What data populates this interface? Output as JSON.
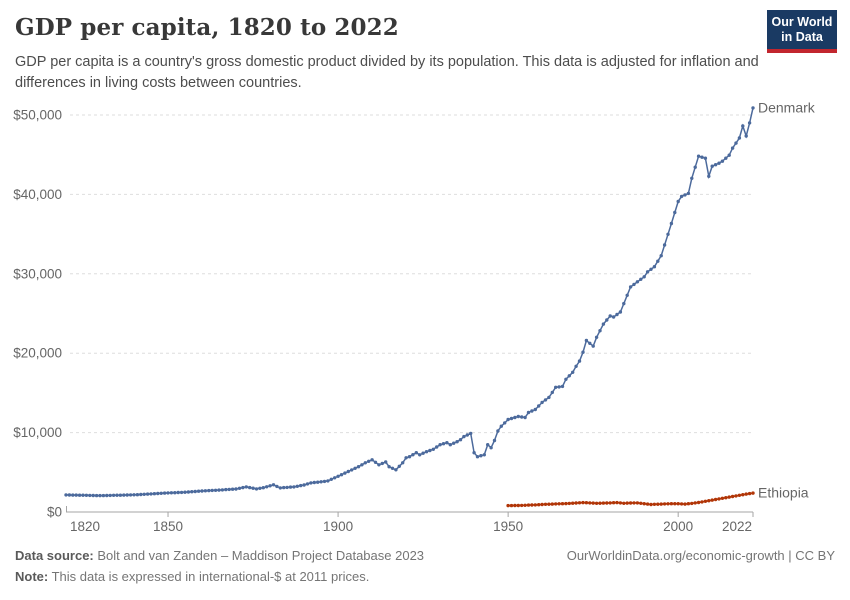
{
  "header": {
    "title": "GDP per capita, 1820 to 2022",
    "subtitle": "GDP per capita is a country's gross domestic product divided by its population. This data is adjusted for inflation and differences in living costs between countries.",
    "logo": {
      "line1": "Our World",
      "line2": "in Data",
      "bg_color": "#1A3A63",
      "stripe_color": "#C2262E"
    }
  },
  "chart_data": {
    "type": "line",
    "title": "GDP per capita, 1820 to 2022",
    "xlabel": "",
    "ylabel": "",
    "x_range": [
      1820,
      2022
    ],
    "y_range": [
      0,
      50000
    ],
    "grid": "horizontal-dashed",
    "legend_position": "end-of-line-labels",
    "axis_color": "#a5a5a5",
    "grid_color": "#dedede",
    "y_ticks": [
      {
        "value": 0,
        "label": "$0"
      },
      {
        "value": 10000,
        "label": "$10,000"
      },
      {
        "value": 20000,
        "label": "$20,000"
      },
      {
        "value": 30000,
        "label": "$30,000"
      },
      {
        "value": 40000,
        "label": "$40,000"
      },
      {
        "value": 50000,
        "label": "$50,000"
      }
    ],
    "x_ticks": [
      {
        "value": 1820,
        "label": "1820"
      },
      {
        "value": 1850,
        "label": "1850"
      },
      {
        "value": 1900,
        "label": "1900"
      },
      {
        "value": 1950,
        "label": "1950"
      },
      {
        "value": 2000,
        "label": "2000"
      },
      {
        "value": 2022,
        "label": "2022"
      }
    ],
    "series": [
      {
        "name": "Denmark",
        "color": "#4C6A9C",
        "points": [
          [
            1820,
            2150
          ],
          [
            1825,
            2110
          ],
          [
            1830,
            2060
          ],
          [
            1835,
            2110
          ],
          [
            1840,
            2160
          ],
          [
            1845,
            2280
          ],
          [
            1850,
            2400
          ],
          [
            1855,
            2490
          ],
          [
            1860,
            2650
          ],
          [
            1865,
            2760
          ],
          [
            1870,
            2900
          ],
          [
            1873,
            3160
          ],
          [
            1876,
            2910
          ],
          [
            1878,
            3060
          ],
          [
            1881,
            3420
          ],
          [
            1883,
            3040
          ],
          [
            1885,
            3100
          ],
          [
            1887,
            3160
          ],
          [
            1890,
            3400
          ],
          [
            1892,
            3670
          ],
          [
            1895,
            3800
          ],
          [
            1897,
            3920
          ],
          [
            1900,
            4500
          ],
          [
            1902,
            4900
          ],
          [
            1904,
            5300
          ],
          [
            1906,
            5700
          ],
          [
            1908,
            6200
          ],
          [
            1910,
            6580
          ],
          [
            1912,
            5950
          ],
          [
            1914,
            6300
          ],
          [
            1915,
            5700
          ],
          [
            1917,
            5320
          ],
          [
            1919,
            6200
          ],
          [
            1920,
            6830
          ],
          [
            1921,
            6960
          ],
          [
            1923,
            7470
          ],
          [
            1924,
            7210
          ],
          [
            1926,
            7600
          ],
          [
            1928,
            7900
          ],
          [
            1930,
            8480
          ],
          [
            1932,
            8730
          ],
          [
            1933,
            8480
          ],
          [
            1935,
            8860
          ],
          [
            1936,
            9110
          ],
          [
            1937,
            9500
          ],
          [
            1939,
            9900
          ],
          [
            1940,
            7470
          ],
          [
            1941,
            6960
          ],
          [
            1943,
            7210
          ],
          [
            1944,
            8480
          ],
          [
            1945,
            8100
          ],
          [
            1946,
            9000
          ],
          [
            1947,
            10200
          ],
          [
            1948,
            10800
          ],
          [
            1950,
            11650
          ],
          [
            1953,
            12030
          ],
          [
            1955,
            11900
          ],
          [
            1956,
            12530
          ],
          [
            1958,
            12910
          ],
          [
            1960,
            13800
          ],
          [
            1962,
            14430
          ],
          [
            1963,
            15060
          ],
          [
            1964,
            15700
          ],
          [
            1966,
            15820
          ],
          [
            1967,
            16710
          ],
          [
            1969,
            17600
          ],
          [
            1970,
            18350
          ],
          [
            1971,
            19000
          ],
          [
            1972,
            20130
          ],
          [
            1973,
            21600
          ],
          [
            1975,
            20900
          ],
          [
            1976,
            22000
          ],
          [
            1978,
            23670
          ],
          [
            1980,
            24690
          ],
          [
            1981,
            24560
          ],
          [
            1983,
            25190
          ],
          [
            1986,
            28350
          ],
          [
            1988,
            28990
          ],
          [
            1990,
            29620
          ],
          [
            1991,
            30250
          ],
          [
            1993,
            30890
          ],
          [
            1995,
            32280
          ],
          [
            1998,
            36330
          ],
          [
            2000,
            39100
          ],
          [
            2001,
            39750
          ],
          [
            2003,
            40130
          ],
          [
            2004,
            42030
          ],
          [
            2006,
            44810
          ],
          [
            2008,
            44560
          ],
          [
            2009,
            42280
          ],
          [
            2010,
            43550
          ],
          [
            2012,
            43930
          ],
          [
            2013,
            44180
          ],
          [
            2015,
            44940
          ],
          [
            2016,
            45830
          ],
          [
            2018,
            47100
          ],
          [
            2019,
            48620
          ],
          [
            2020,
            47350
          ],
          [
            2021,
            49000
          ],
          [
            2022,
            50900
          ]
        ]
      },
      {
        "name": "Ethiopia",
        "color": "#B13507",
        "points": [
          [
            1950,
            800
          ],
          [
            1953,
            820
          ],
          [
            1955,
            850
          ],
          [
            1958,
            900
          ],
          [
            1960,
            950
          ],
          [
            1963,
            1000
          ],
          [
            1965,
            1030
          ],
          [
            1968,
            1080
          ],
          [
            1970,
            1130
          ],
          [
            1972,
            1180
          ],
          [
            1974,
            1150
          ],
          [
            1976,
            1100
          ],
          [
            1978,
            1120
          ],
          [
            1980,
            1150
          ],
          [
            1982,
            1180
          ],
          [
            1984,
            1100
          ],
          [
            1986,
            1130
          ],
          [
            1988,
            1150
          ],
          [
            1990,
            1050
          ],
          [
            1992,
            950
          ],
          [
            1994,
            980
          ],
          [
            1996,
            1020
          ],
          [
            1998,
            1050
          ],
          [
            2000,
            1050
          ],
          [
            2002,
            1000
          ],
          [
            2004,
            1080
          ],
          [
            2006,
            1200
          ],
          [
            2008,
            1350
          ],
          [
            2010,
            1500
          ],
          [
            2012,
            1650
          ],
          [
            2014,
            1800
          ],
          [
            2016,
            1950
          ],
          [
            2018,
            2100
          ],
          [
            2020,
            2250
          ],
          [
            2022,
            2380
          ]
        ]
      }
    ]
  },
  "footer": {
    "source_label": "Data source:",
    "source_text": " Bolt and van Zanden – Maddison Project Database 2023",
    "note_label": "Note:",
    "note_text": " This data is expressed in international-$ at 2011 prices.",
    "right_text": "OurWorldinData.org/economic-growth | CC BY"
  }
}
